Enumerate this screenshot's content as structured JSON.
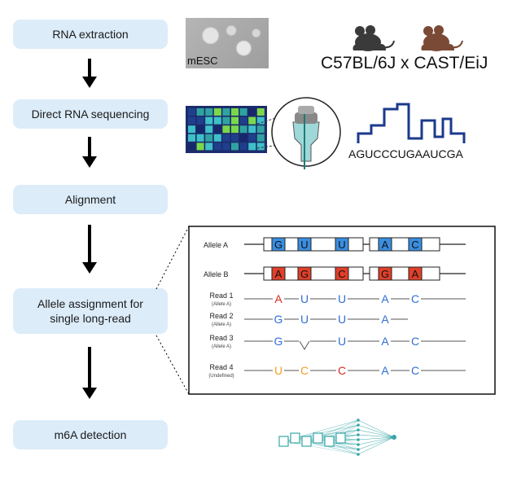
{
  "steps": [
    {
      "label": "RNA extraction"
    },
    {
      "label": "Direct RNA sequencing"
    },
    {
      "label": "Alignment"
    },
    {
      "label": "Allele assignment for single long-read"
    },
    {
      "label": "m6A detection"
    }
  ],
  "extraction": {
    "cell_label": "mESC",
    "strains": "C57BL/6J x CAST/EiJ"
  },
  "sequencing": {
    "sequence": "AGUCCCUGAAUCGA"
  },
  "allele_panel": {
    "alleles": [
      {
        "name": "Allele A",
        "bases": [
          "G",
          "U",
          "U",
          "A",
          "C"
        ]
      },
      {
        "name": "Allele B",
        "bases": [
          "A",
          "G",
          "C",
          "G",
          "A"
        ]
      }
    ],
    "reads": [
      {
        "name": "Read 1",
        "assignment": "(Allele A)",
        "bases": [
          "A",
          "U",
          "U",
          "A",
          "C"
        ]
      },
      {
        "name": "Read 2",
        "assignment": "(Allele A)",
        "bases": [
          "G",
          "U",
          "U",
          "A",
          ""
        ]
      },
      {
        "name": "Read 3",
        "assignment": "(Allele A)",
        "bases": [
          "G",
          "",
          "U",
          "A",
          "C"
        ]
      },
      {
        "name": "Read 4",
        "assignment": "(Undefined)",
        "bases": [
          "U",
          "C",
          "C",
          "A",
          "C"
        ]
      }
    ]
  },
  "colors": {
    "step_box": "#dcecf9",
    "allele_a_fill": "#3a8ee0",
    "allele_b_fill": "#e0402a",
    "read_blue": "#2f6fd6",
    "read_red": "#d62a1e",
    "read_orange": "#f0a020",
    "dna_line": "#1b3a8c",
    "mouse_black": "#3a3a3a",
    "mouse_brown": "#7a4a36",
    "network_teal": "#3aa6a8"
  }
}
